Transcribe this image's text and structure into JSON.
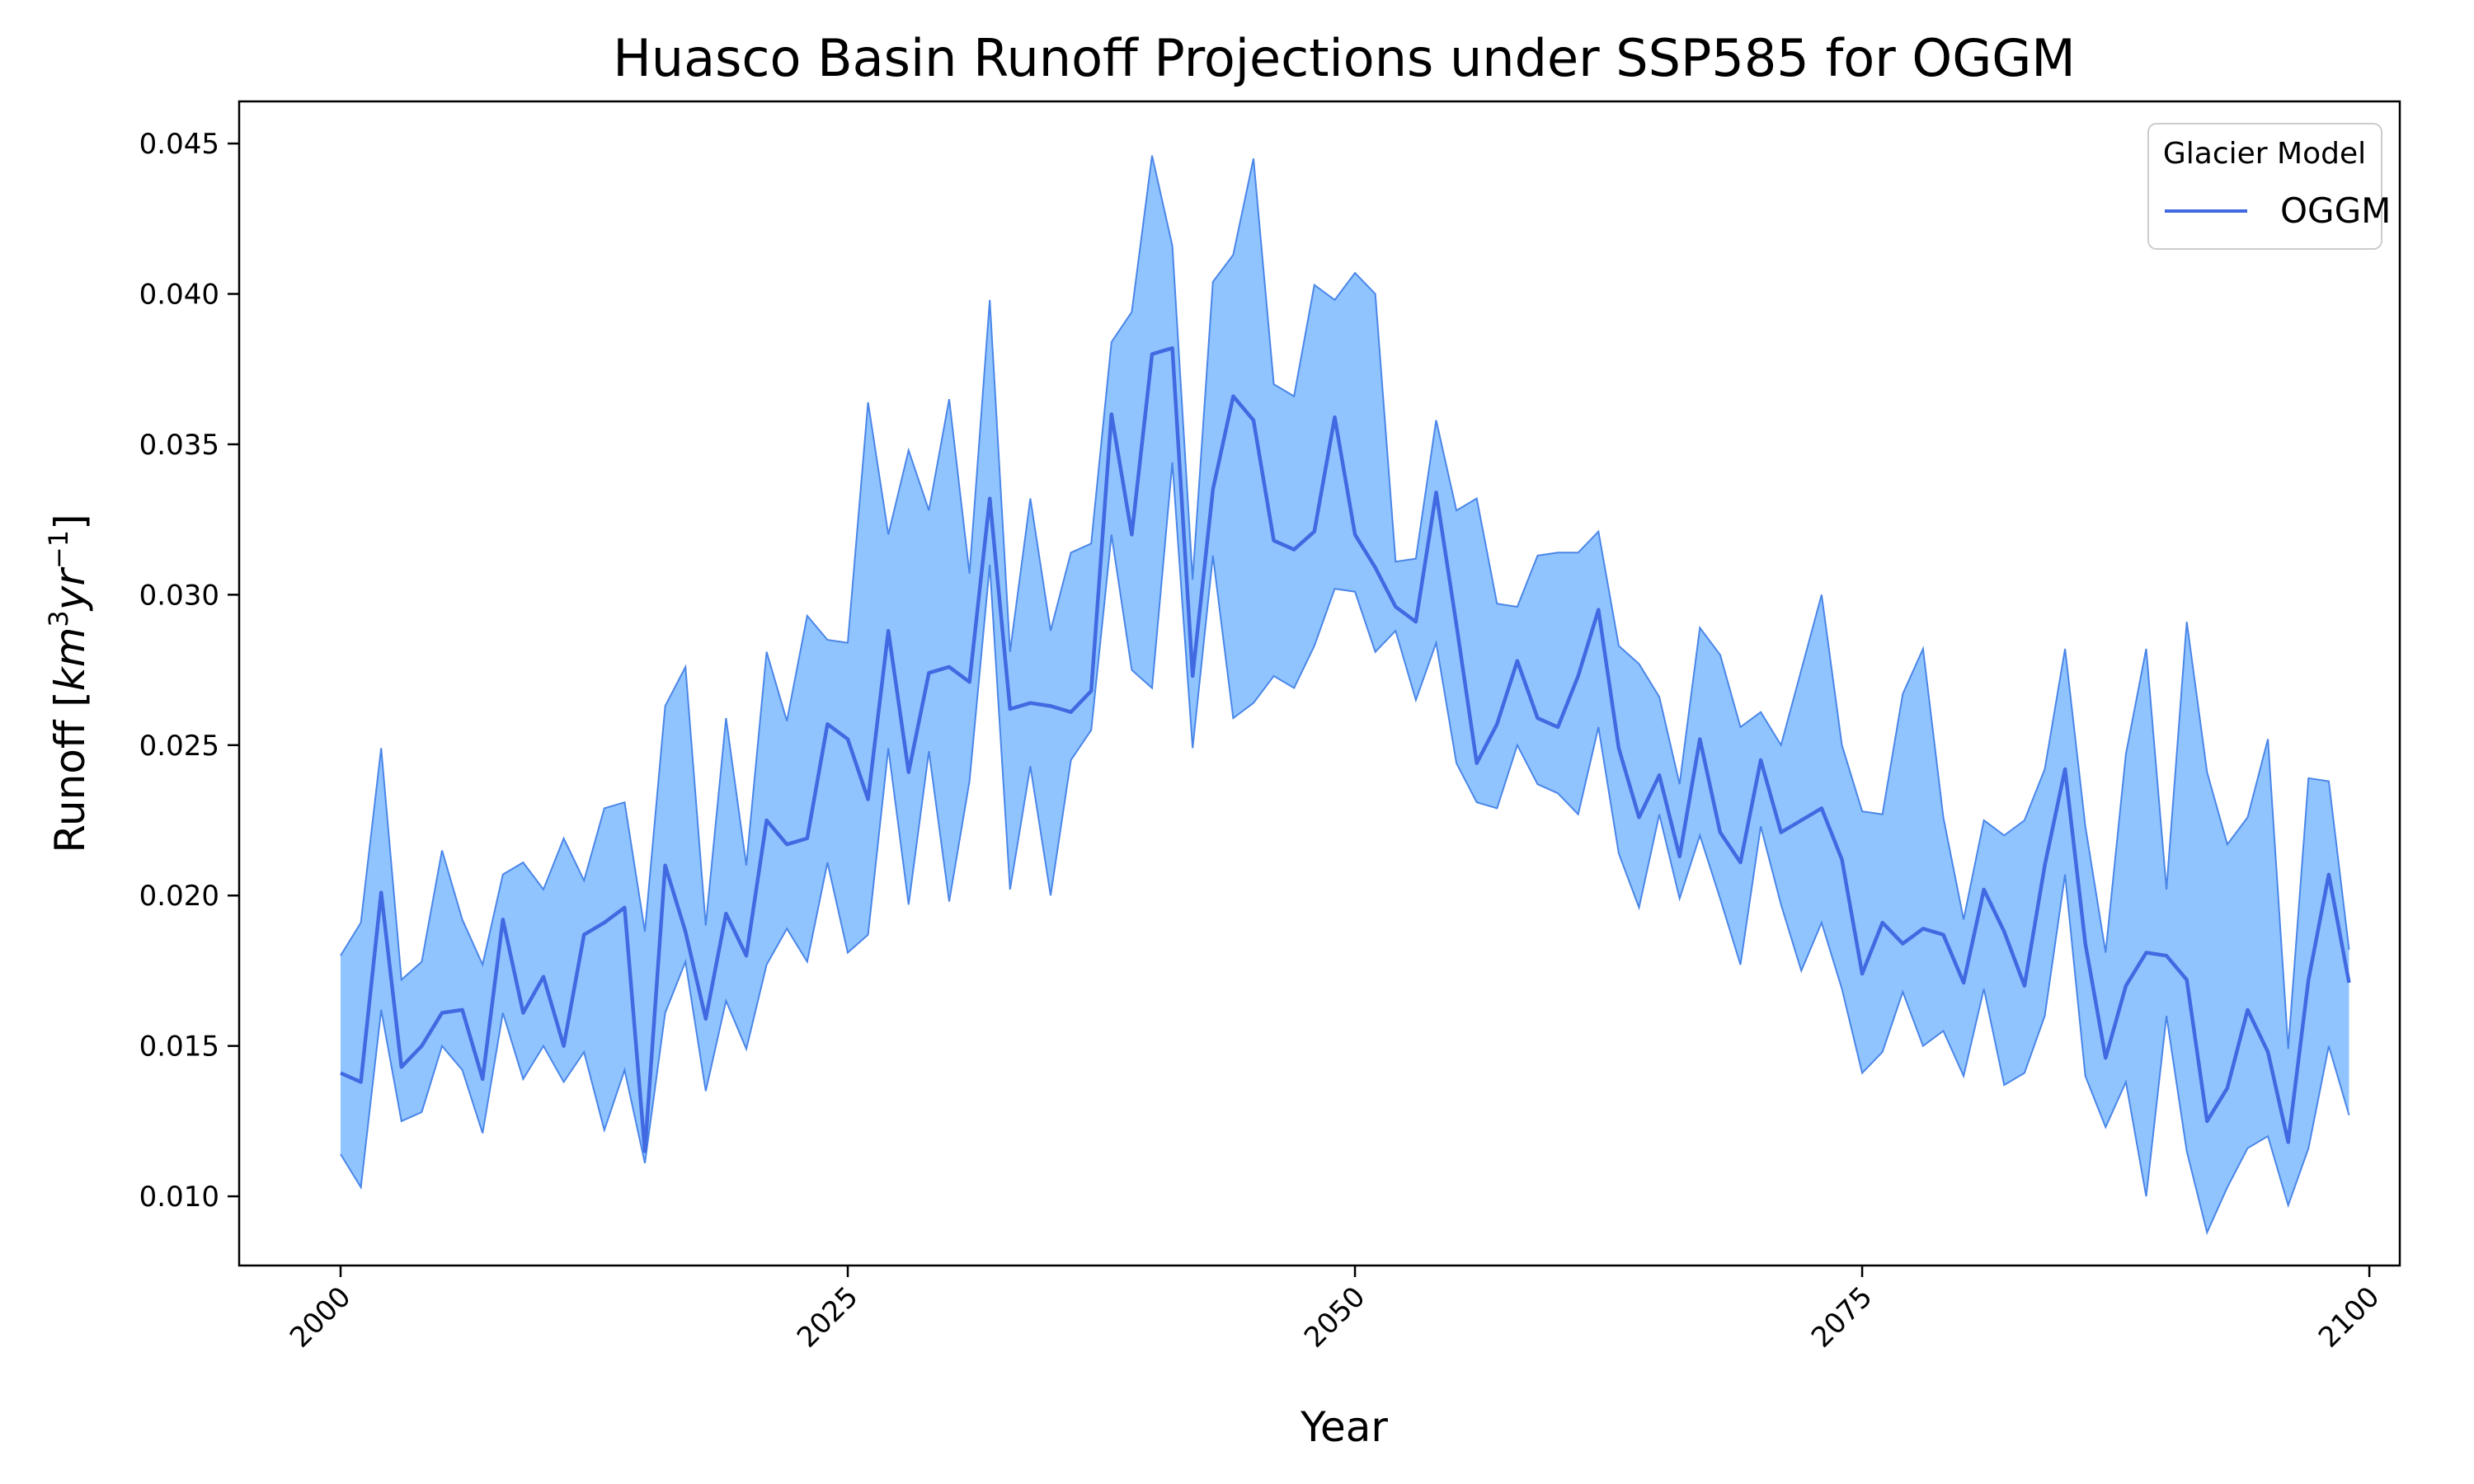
{
  "chart_data": {
    "type": "area",
    "title": "Huasco Basin Runoff Projections under SSP585 for OGGM",
    "xlabel": "Year",
    "ylabel_main": "Runoff [",
    "ylabel_unit_base": "km",
    "ylabel_unit_exp1": "3",
    "ylabel_unit_mid": "yr",
    "ylabel_unit_exp2": "−1",
    "ylabel_close": "]",
    "xlim": [
      1995,
      2101.5
    ],
    "ylim": [
      0.0077,
      0.0464
    ],
    "x_ticks": [
      2000,
      2025,
      2050,
      2075,
      2100
    ],
    "x_tick_labels": [
      "2000",
      "2025",
      "2050",
      "2075",
      "2100"
    ],
    "y_ticks": [
      0.01,
      0.015,
      0.02,
      0.025,
      0.03,
      0.035,
      0.04,
      0.045
    ],
    "y_tick_labels": [
      "0.010",
      "0.015",
      "0.020",
      "0.025",
      "0.030",
      "0.035",
      "0.040",
      "0.045"
    ],
    "legend": {
      "title": "Glacier Model",
      "placement": "top-right",
      "entries": [
        "OGGM"
      ]
    },
    "colors": {
      "line": "#4169e1",
      "band_fill": "#90c4ff",
      "band_edge": "#4a86e8"
    },
    "years_start": 2000,
    "years_end": 2099,
    "series": [
      {
        "name": "OGGM",
        "values": [
          0.0141,
          0.0138,
          0.0201,
          0.0143,
          0.015,
          0.0161,
          0.0162,
          0.0139,
          0.0192,
          0.0161,
          0.0173,
          0.015,
          0.0187,
          0.0191,
          0.0196,
          0.0115,
          0.021,
          0.0188,
          0.0159,
          0.0194,
          0.018,
          0.0225,
          0.0217,
          0.0219,
          0.0257,
          0.0252,
          0.0232,
          0.0288,
          0.0241,
          0.0274,
          0.0276,
          0.0271,
          0.0332,
          0.0262,
          0.0264,
          0.0263,
          0.0261,
          0.0268,
          0.036,
          0.032,
          0.038,
          0.0382,
          0.0273,
          0.0335,
          0.0366,
          0.0358,
          0.0318,
          0.0315,
          0.0321,
          0.0359,
          0.032,
          0.0309,
          0.0296,
          0.0291,
          0.0334,
          0.029,
          0.0244,
          0.0257,
          0.0278,
          0.0259,
          0.0256,
          0.0273,
          0.0295,
          0.0249,
          0.0226,
          0.024,
          0.0213,
          0.0252,
          0.0221,
          0.0211,
          0.0245,
          0.0221,
          0.0225,
          0.0229,
          0.0212,
          0.0174,
          0.0191,
          0.0184,
          0.0189,
          0.0187,
          0.0171,
          0.0202,
          0.0188,
          0.017,
          0.021,
          0.0242,
          0.0184,
          0.0146,
          0.017,
          0.0181,
          0.018,
          0.0172,
          0.0125,
          0.0136,
          0.0162,
          0.0148,
          0.0118,
          0.0172,
          0.0207,
          0.0171
        ]
      }
    ],
    "band_upper": [
      0.018,
      0.0191,
      0.0249,
      0.0172,
      0.0178,
      0.0215,
      0.0192,
      0.0177,
      0.0207,
      0.0211,
      0.0202,
      0.0219,
      0.0205,
      0.0229,
      0.0231,
      0.0188,
      0.0263,
      0.0276,
      0.019,
      0.0259,
      0.021,
      0.0281,
      0.0258,
      0.0293,
      0.0285,
      0.0284,
      0.0364,
      0.032,
      0.0348,
      0.0328,
      0.0365,
      0.0307,
      0.0398,
      0.0281,
      0.0332,
      0.0288,
      0.0314,
      0.0317,
      0.0384,
      0.0394,
      0.0446,
      0.0416,
      0.0305,
      0.0404,
      0.0413,
      0.0445,
      0.037,
      0.0366,
      0.0403,
      0.0398,
      0.0407,
      0.04,
      0.0311,
      0.0312,
      0.0358,
      0.0328,
      0.0332,
      0.0297,
      0.0296,
      0.0313,
      0.0314,
      0.0314,
      0.0321,
      0.0283,
      0.0277,
      0.0266,
      0.0237,
      0.0289,
      0.028,
      0.0256,
      0.0261,
      0.025,
      0.0275,
      0.03,
      0.025,
      0.0228,
      0.0227,
      0.0267,
      0.0282,
      0.0226,
      0.0192,
      0.0225,
      0.022,
      0.0225,
      0.0242,
      0.0282,
      0.0223,
      0.0181,
      0.0247,
      0.0282,
      0.0202,
      0.0291,
      0.0241,
      0.0217,
      0.0226,
      0.0252,
      0.0149,
      0.0239,
      0.0238,
      0.0182
    ],
    "band_lower": [
      0.0114,
      0.0103,
      0.0162,
      0.0125,
      0.0128,
      0.015,
      0.0142,
      0.0121,
      0.0161,
      0.0139,
      0.015,
      0.0138,
      0.0148,
      0.0122,
      0.0142,
      0.0111,
      0.0161,
      0.0178,
      0.0135,
      0.0165,
      0.0149,
      0.0177,
      0.0189,
      0.0178,
      0.0211,
      0.0181,
      0.0187,
      0.0249,
      0.0197,
      0.0248,
      0.0198,
      0.0238,
      0.031,
      0.0202,
      0.0243,
      0.02,
      0.0245,
      0.0255,
      0.032,
      0.0275,
      0.0269,
      0.0344,
      0.0249,
      0.0313,
      0.0259,
      0.0264,
      0.0273,
      0.0269,
      0.0283,
      0.0302,
      0.0301,
      0.0281,
      0.0288,
      0.0265,
      0.0284,
      0.0244,
      0.0231,
      0.0229,
      0.025,
      0.0237,
      0.0234,
      0.0227,
      0.0256,
      0.0214,
      0.0196,
      0.0227,
      0.0199,
      0.022,
      0.0199,
      0.0177,
      0.0223,
      0.0197,
      0.0175,
      0.0191,
      0.0169,
      0.0141,
      0.0148,
      0.0168,
      0.015,
      0.0155,
      0.014,
      0.0169,
      0.0137,
      0.0141,
      0.016,
      0.0207,
      0.014,
      0.0123,
      0.0138,
      0.01,
      0.016,
      0.0115,
      0.0088,
      0.0103,
      0.0116,
      0.012,
      0.0097,
      0.0116,
      0.015,
      0.0127
    ]
  }
}
